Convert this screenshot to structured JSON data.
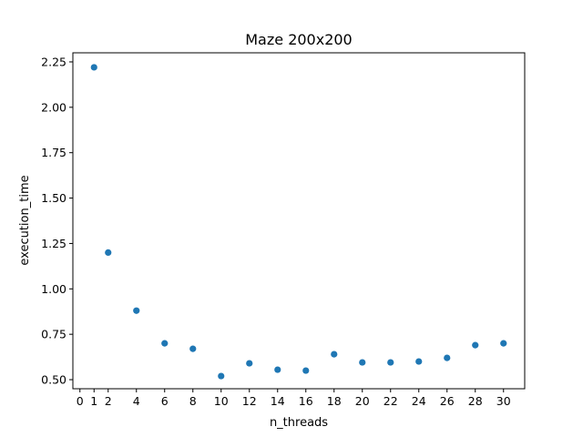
{
  "chart_data": {
    "type": "scatter",
    "title": "Maze 200x200",
    "xlabel": "n_threads",
    "ylabel": "execution_time",
    "xlim": [
      -0.5,
      31.5
    ],
    "ylim": [
      0.45,
      2.3
    ],
    "x_ticks": [
      0,
      1,
      2,
      4,
      6,
      8,
      10,
      12,
      14,
      16,
      18,
      20,
      22,
      24,
      26,
      28,
      30
    ],
    "x_tick_labels": [
      "0",
      "1",
      "2",
      "4",
      "6",
      "8",
      "10",
      "12",
      "14",
      "16",
      "18",
      "20",
      "22",
      "24",
      "26",
      "28",
      "30"
    ],
    "y_ticks": [
      0.5,
      0.75,
      1.0,
      1.25,
      1.5,
      1.75,
      2.0,
      2.25
    ],
    "y_tick_labels": [
      "0.50",
      "0.75",
      "1.00",
      "1.25",
      "1.50",
      "1.75",
      "2.00",
      "2.25"
    ],
    "grid": false,
    "marker_color": "#1f77b4",
    "series": [
      {
        "x": [
          1,
          2,
          4,
          6,
          8,
          10,
          12,
          14,
          16,
          18,
          20,
          22,
          24,
          26,
          28,
          30
        ],
        "y": [
          2.22,
          1.2,
          0.88,
          0.7,
          0.67,
          0.52,
          0.59,
          0.555,
          0.55,
          0.64,
          0.595,
          0.595,
          0.6,
          0.62,
          0.69,
          0.7
        ]
      }
    ]
  }
}
